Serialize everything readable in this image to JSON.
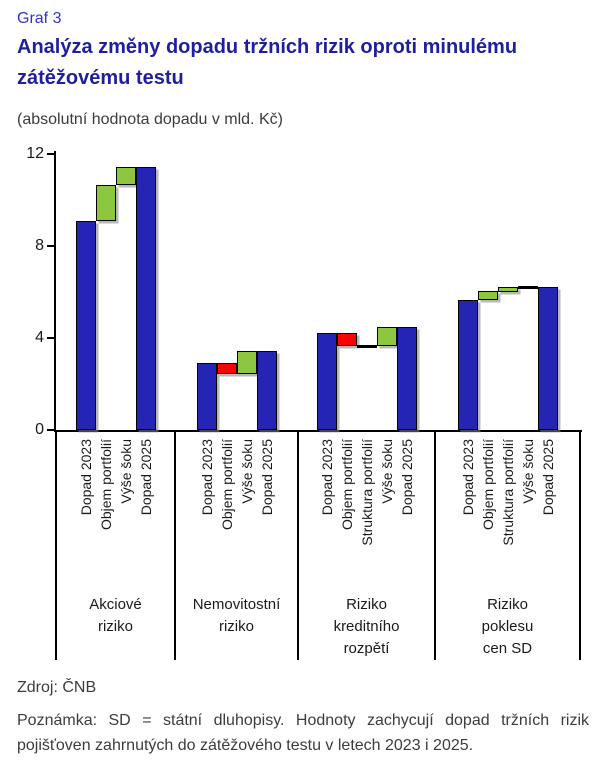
{
  "header": {
    "graf_label": "Graf 3",
    "title": "Analýza změny dopadu tržních rizik oproti minulému zátěžovému testu",
    "subtitle": "(absolutní hodnota dopadu v mld. Kč)"
  },
  "chart_data": {
    "type": "bar",
    "subtype": "waterfall",
    "title": "Analýza změny dopadu tržních rizik oproti minulému zátěžovému testu",
    "units": "mld. Kč",
    "ylim": [
      0,
      12
    ],
    "yticks": [
      0,
      4,
      8,
      12
    ],
    "grid": false,
    "legend": "none",
    "colors": {
      "total": "#2525b5",
      "increase": "#8dc63f",
      "decrease": "#ff0000",
      "zero": "#000000"
    },
    "groups": [
      {
        "name": "Akciové riziko",
        "name_lines": [
          "Akciové",
          "riziko"
        ],
        "bars": [
          {
            "label": "Dopad 2023",
            "kind": "total",
            "from": 0,
            "to": 9.1
          },
          {
            "label": "Objem portfolií",
            "kind": "increase",
            "from": 9.1,
            "to": 10.65
          },
          {
            "label": "Výše šoku",
            "kind": "increase",
            "from": 10.65,
            "to": 11.45
          },
          {
            "label": "Dopad 2025",
            "kind": "total",
            "from": 0,
            "to": 11.45
          }
        ]
      },
      {
        "name": "Nemovitostní riziko",
        "name_lines": [
          "Nemovitostní",
          "riziko"
        ],
        "bars": [
          {
            "label": "Dopad 2023",
            "kind": "total",
            "from": 0,
            "to": 2.9
          },
          {
            "label": "Objem portfolií",
            "kind": "decrease",
            "from": 2.9,
            "to": 2.45
          },
          {
            "label": "Výše šoku",
            "kind": "increase",
            "from": 2.45,
            "to": 3.45
          },
          {
            "label": "Dopad 2025",
            "kind": "total",
            "from": 0,
            "to": 3.45
          }
        ]
      },
      {
        "name": "Riziko kreditního rozpětí",
        "name_lines": [
          "Riziko",
          "kreditního",
          "rozpětí"
        ],
        "bars": [
          {
            "label": "Dopad 2023",
            "kind": "total",
            "from": 0,
            "to": 4.2
          },
          {
            "label": "Objem portfolií",
            "kind": "decrease",
            "from": 4.2,
            "to": 3.65
          },
          {
            "label": "Struktura portfolií",
            "kind": "zero",
            "from": 3.65,
            "to": 3.65
          },
          {
            "label": "Výše šoku",
            "kind": "increase",
            "from": 3.65,
            "to": 4.5
          },
          {
            "label": "Dopad 2025",
            "kind": "total",
            "from": 0,
            "to": 4.5
          }
        ]
      },
      {
        "name": "Riziko poklesu cen SD",
        "name_lines": [
          "Riziko",
          "poklesu",
          "cen SD"
        ],
        "bars": [
          {
            "label": "Dopad 2023",
            "kind": "total",
            "from": 0,
            "to": 5.65
          },
          {
            "label": "Objem portfolií",
            "kind": "increase",
            "from": 5.65,
            "to": 6.05
          },
          {
            "label": "Struktura portfolií",
            "kind": "increase",
            "from": 6.05,
            "to": 6.2
          },
          {
            "label": "Výše šoku",
            "kind": "zero",
            "from": 6.2,
            "to": 6.2
          },
          {
            "label": "Dopad 2025",
            "kind": "total",
            "from": 0,
            "to": 6.2
          }
        ]
      }
    ]
  },
  "footer": {
    "source": "Zdroj: ČNB",
    "note": "Poznámka: SD = státní dluhopisy. Hodnoty zachycují dopad tržních rizik pojišťoven zahrnutých do zátěžového testu v letech 2023 i 2025."
  }
}
